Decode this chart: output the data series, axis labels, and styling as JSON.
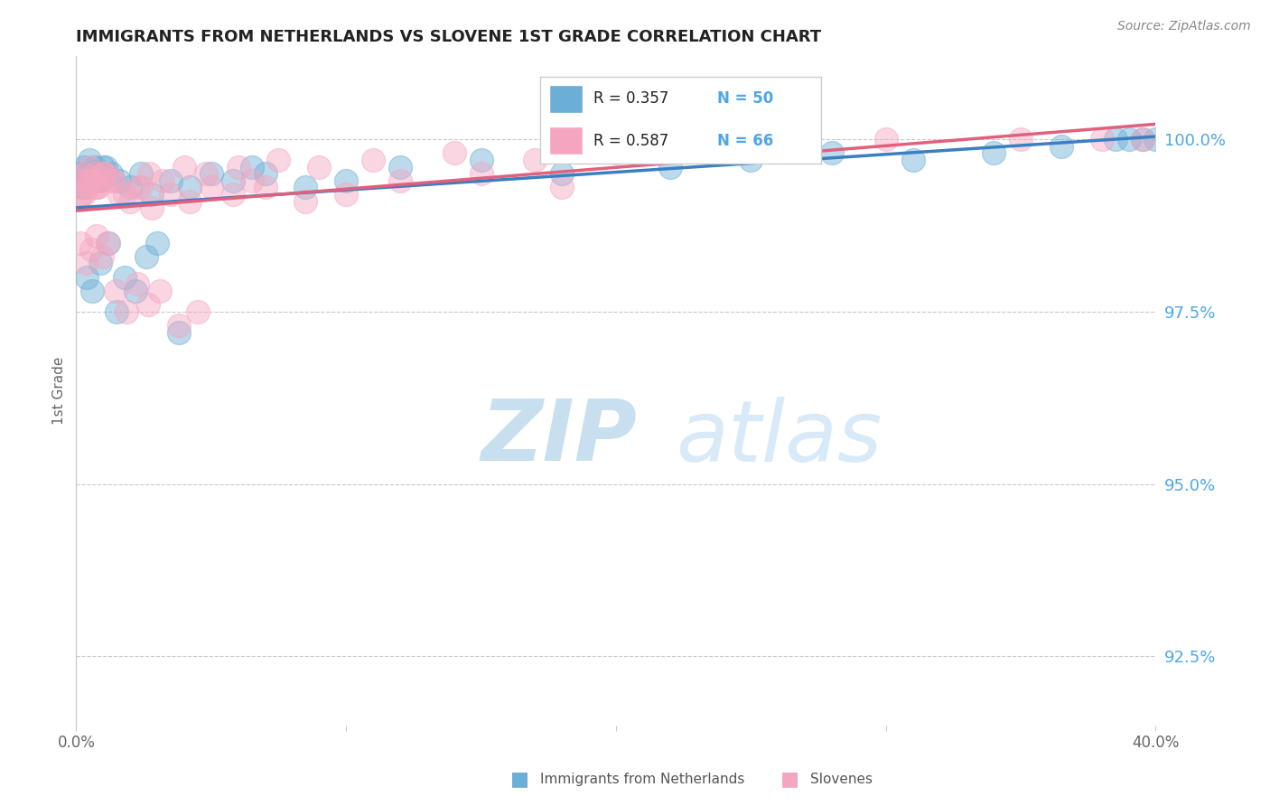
{
  "title": "IMMIGRANTS FROM NETHERLANDS VS SLOVENE 1ST GRADE CORRELATION CHART",
  "source_text": "Source: ZipAtlas.com",
  "ylabel": "1st Grade",
  "xlim": [
    0.0,
    40.0
  ],
  "ylim": [
    91.5,
    101.2
  ],
  "ytick_labels_right": [
    "100.0%",
    "97.5%",
    "95.0%",
    "92.5%"
  ],
  "ytick_vals_right": [
    100.0,
    97.5,
    95.0,
    92.5
  ],
  "legend_color1": "#6baed6",
  "legend_color2": "#f4a6c0",
  "watermark_zip": "ZIP",
  "watermark_atlas": "atlas",
  "watermark_color": "#d0e8f5",
  "blue_color": "#6baed6",
  "pink_color": "#f4a6c0",
  "blue_line_color": "#3a7fc1",
  "pink_line_color": "#e0607e",
  "blue_scatter_x": [
    0.1,
    0.2,
    0.3,
    0.4,
    0.5,
    0.6,
    0.7,
    0.8,
    0.9,
    1.0,
    0.3,
    0.5,
    0.8,
    1.1,
    1.3,
    1.6,
    2.0,
    2.4,
    2.8,
    3.5,
    4.2,
    5.0,
    5.8,
    6.5,
    7.0,
    8.5,
    10.0,
    12.0,
    15.0,
    18.0,
    22.0,
    25.0,
    28.0,
    31.0,
    34.0,
    36.5,
    38.5,
    39.0,
    39.5,
    40.0,
    0.4,
    0.6,
    0.9,
    1.2,
    1.5,
    1.8,
    2.2,
    2.6,
    3.0,
    3.8
  ],
  "blue_scatter_y": [
    99.5,
    99.3,
    99.6,
    99.4,
    99.7,
    99.5,
    99.6,
    99.4,
    99.5,
    99.6,
    99.3,
    99.5,
    99.4,
    99.6,
    99.5,
    99.4,
    99.3,
    99.5,
    99.2,
    99.4,
    99.3,
    99.5,
    99.4,
    99.6,
    99.5,
    99.3,
    99.4,
    99.6,
    99.7,
    99.5,
    99.6,
    99.7,
    99.8,
    99.7,
    99.8,
    99.9,
    100.0,
    100.0,
    100.0,
    100.0,
    98.0,
    97.8,
    98.2,
    98.5,
    97.5,
    98.0,
    97.8,
    98.3,
    98.5,
    97.2
  ],
  "pink_scatter_x": [
    0.1,
    0.2,
    0.3,
    0.4,
    0.5,
    0.6,
    0.7,
    0.8,
    0.9,
    1.0,
    0.3,
    0.5,
    0.8,
    1.1,
    1.3,
    1.6,
    2.0,
    2.4,
    2.8,
    3.5,
    4.2,
    5.0,
    5.8,
    6.5,
    7.0,
    8.5,
    10.0,
    12.0,
    15.0,
    18.0,
    0.2,
    0.4,
    0.7,
    1.0,
    1.4,
    1.8,
    2.3,
    2.7,
    3.2,
    4.0,
    4.8,
    6.0,
    7.5,
    9.0,
    11.0,
    14.0,
    17.0,
    20.0,
    25.0,
    30.0,
    35.0,
    38.0,
    39.5,
    0.15,
    0.35,
    0.55,
    0.75,
    0.95,
    1.15,
    1.45,
    1.85,
    2.25,
    2.65,
    3.1,
    3.8,
    4.5
  ],
  "pink_scatter_y": [
    99.4,
    99.2,
    99.5,
    99.3,
    99.6,
    99.4,
    99.5,
    99.3,
    99.4,
    99.5,
    99.2,
    99.4,
    99.3,
    99.5,
    99.4,
    99.2,
    99.1,
    99.3,
    99.0,
    99.2,
    99.1,
    99.3,
    99.2,
    99.4,
    99.3,
    99.1,
    99.2,
    99.4,
    99.5,
    99.3,
    99.2,
    99.4,
    99.3,
    99.5,
    99.4,
    99.2,
    99.3,
    99.5,
    99.4,
    99.6,
    99.5,
    99.6,
    99.7,
    99.6,
    99.7,
    99.8,
    99.7,
    99.8,
    99.9,
    100.0,
    100.0,
    100.0,
    100.0,
    98.5,
    98.2,
    98.4,
    98.6,
    98.3,
    98.5,
    97.8,
    97.5,
    97.9,
    97.6,
    97.8,
    97.3,
    97.5
  ],
  "R_blue": "0.357",
  "N_blue": "50",
  "R_pink": "0.587",
  "N_pink": "66"
}
